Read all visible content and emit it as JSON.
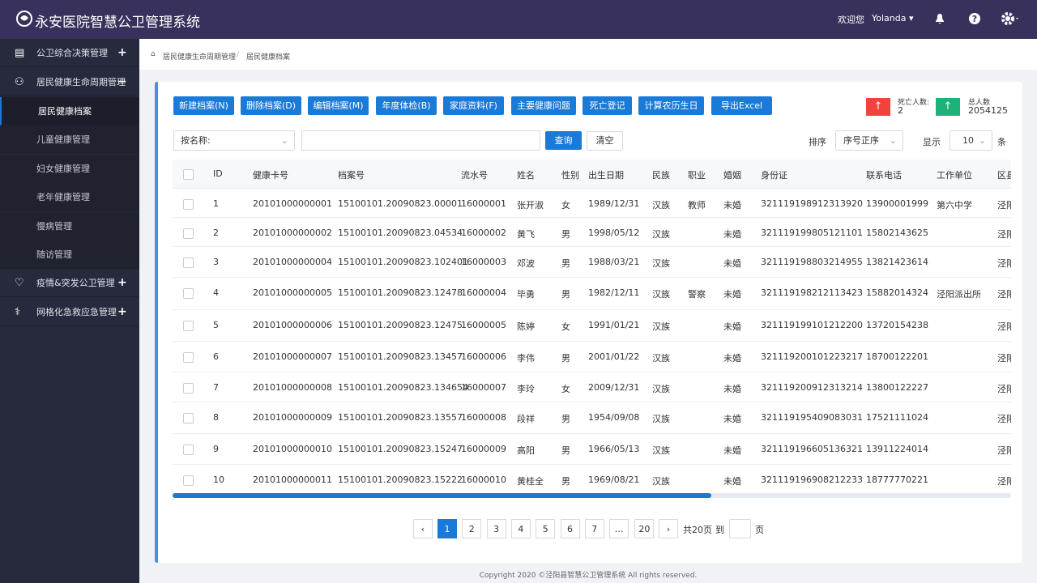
{
  "header": {
    "title": "永安医院智慧公卫管理系统",
    "welcome": "欢迎您",
    "user": "Yolanda"
  },
  "sidebar": {
    "items": [
      {
        "label": "公卫综合决策管理",
        "toggle": "+"
      },
      {
        "label": "居民健康生命周期管理",
        "toggle": "−",
        "children": [
          "居民健康档案",
          "儿童健康管理",
          "妇女健康管理",
          "老年健康管理",
          "慢病管理",
          "随访管理"
        ]
      },
      {
        "label": "疫情&突发公卫管理",
        "toggle": "+"
      },
      {
        "label": "网格化急救应急管理",
        "toggle": "+"
      }
    ]
  },
  "breadcrumb": [
    "居民健康生命周期管理",
    "居民健康档案"
  ],
  "toolbar": [
    "新建档案(N)",
    "删除档案(D)",
    "编辑档案(M)",
    "年度体检(B)",
    "家庭资料(F)",
    "主要健康问题",
    "死亡登记",
    "计算农历生日",
    "导出Excel"
  ],
  "stats": {
    "death_label": "死亡人数:",
    "death_value": "2",
    "total_label": "总人数",
    "total_value": "2054125"
  },
  "search": {
    "field": "按名称:",
    "query": "查询",
    "clear": "清空",
    "sort_label": "排序",
    "sort_value": "序号正序",
    "show_label": "显示",
    "show_value": "10",
    "show_unit": "条"
  },
  "table": {
    "columns": [
      "ID",
      "健康卡号",
      "档案号",
      "流水号",
      "姓名",
      "性别",
      "出生日期",
      "民族",
      "职业",
      "婚姻",
      "身份证",
      "联系电话",
      "工作单位",
      "区县"
    ],
    "rows": [
      [
        "1",
        "20101000000001",
        "15100101.20090823.00001",
        "16000001",
        "张开淑",
        "女",
        "1989/12/31",
        "汉族",
        "教师",
        "未婚",
        "321119198912313920",
        "13900001999",
        "第六中学",
        "泾阳"
      ],
      [
        "2",
        "20101000000002",
        "15100101.20090823.04534",
        "16000002",
        "黄飞",
        "男",
        "1998/05/12",
        "汉族",
        "",
        "未婚",
        "321119199805121101",
        "15802143625",
        "",
        "泾阳"
      ],
      [
        "3",
        "20101000000004",
        "15100101.20090823.102401",
        "16000003",
        "邓波",
        "男",
        "1988/03/21",
        "汉族",
        "",
        "未婚",
        "321119198803214955",
        "13821423614",
        "",
        "泾阳"
      ],
      [
        "4",
        "20101000000005",
        "15100101.20090823.12478",
        "16000004",
        "毕勇",
        "男",
        "1982/12/11",
        "汉族",
        "警察",
        "未婚",
        "321119198212113423",
        "15882014324",
        "泾阳派出所",
        "泾阳"
      ],
      [
        "5",
        "20101000000006",
        "15100101.20090823.12475",
        "16000005",
        "陈婷",
        "女",
        "1991/01/21",
        "汉族",
        "",
        "未婚",
        "321119199101212200",
        "13720154238",
        "",
        "泾阳"
      ],
      [
        "6",
        "20101000000007",
        "15100101.20090823.13457",
        "16000006",
        "李伟",
        "男",
        "2001/01/22",
        "汉族",
        "",
        "未婚",
        "321119200101223217",
        "18700122201",
        "",
        "泾阳"
      ],
      [
        "7",
        "20101000000008",
        "15100101.20090823.134654",
        "16000007",
        "李玲",
        "女",
        "2009/12/31",
        "汉族",
        "",
        "未婚",
        "321119200912313214",
        "13800122227",
        "",
        "泾阳"
      ],
      [
        "8",
        "20101000000009",
        "15100101.20090823.13557",
        "16000008",
        "段祥",
        "男",
        "1954/09/08",
        "汉族",
        "",
        "未婚",
        "321119195409083031",
        "17521111024",
        "",
        "泾阳"
      ],
      [
        "9",
        "20101000000010",
        "15100101.20090823.15247",
        "16000009",
        "高阳",
        "男",
        "1966/05/13",
        "汉族",
        "",
        "未婚",
        "321119196605136321",
        "13911224014",
        "",
        "泾阳"
      ],
      [
        "10",
        "20101000000011",
        "15100101.20090823.15222",
        "16000010",
        "黄桂全",
        "男",
        "1969/08/21",
        "汉族",
        "",
        "未婚",
        "321119196908212233",
        "18777770221",
        "",
        "泾阳"
      ]
    ]
  },
  "pagination": {
    "pages": [
      "1",
      "2",
      "3",
      "4",
      "5",
      "6",
      "7",
      "…",
      "20"
    ],
    "total": "共20页",
    "goto": "到",
    "unit": "页"
  },
  "footer": "Copyright 2020 ©泾阳县智慧公卫管理系统 All rights reserved."
}
